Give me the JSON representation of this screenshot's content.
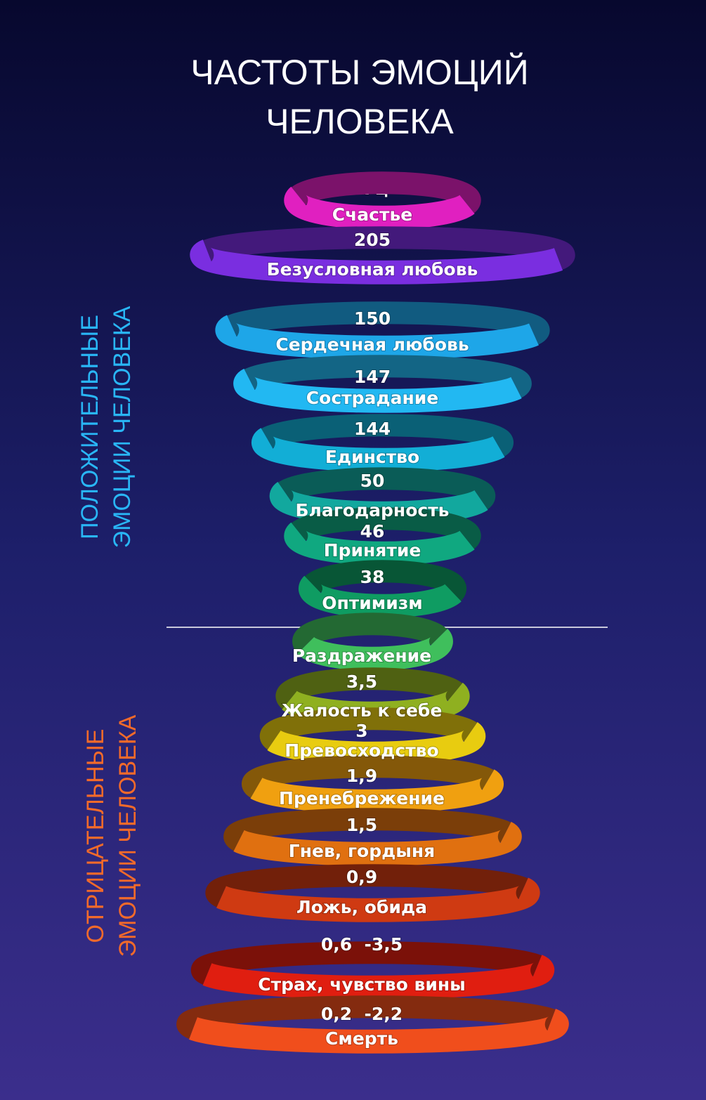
{
  "title": [
    "ЧАСТОТЫ ЭМОЦИЙ",
    "ЧЕЛОВЕКА"
  ],
  "unit": "Гц",
  "positive": {
    "label": [
      "ПОЛОЖИТЕЛЬНЫЕ",
      "ЭМОЦИИ ЧЕЛОВЕКА"
    ],
    "rows": [
      "Счастье",
      "205",
      "Безусловная любовь",
      "150",
      "Сердечная любовь",
      "147",
      "Сострадание",
      "144",
      "Единство",
      "50",
      "Благодарность",
      "46",
      "Принятие",
      "38",
      "Оптимизм"
    ]
  },
  "negative": {
    "label": [
      "ОТРИЦАТЕЛЬНЫЕ",
      "ЭМОЦИИ ЧЕЛОВЕКА"
    ],
    "rows": [
      "Раздражение",
      "3,5",
      "Жалость к себе",
      "3",
      "Превосходство",
      "1,9",
      "Пренебрежение",
      "1,5",
      "Гнев, гордыня",
      "0,9",
      "Ложь, обида",
      "0,6  -3,5",
      "Страх, чувство вины",
      "0,2  -2,2",
      "Смерть"
    ]
  }
}
